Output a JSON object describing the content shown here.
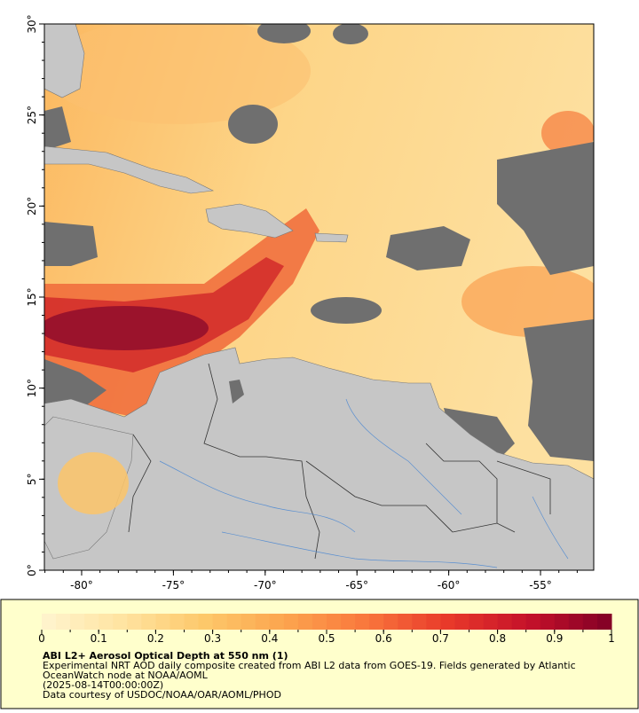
{
  "map": {
    "xlim": [
      -82.03,
      -52.1
    ],
    "ylim": [
      0,
      30
    ],
    "xticks": [
      {
        "value": -80,
        "label": "-80°"
      },
      {
        "value": -75,
        "label": "-75°"
      },
      {
        "value": -70,
        "label": "-70°"
      },
      {
        "value": -65,
        "label": "-65°"
      },
      {
        "value": -60,
        "label": "-60°"
      },
      {
        "value": -55,
        "label": "-55°"
      }
    ],
    "yticks": [
      {
        "value": 0,
        "label": "0°"
      },
      {
        "value": 5,
        "label": "5°"
      },
      {
        "value": 10,
        "label": "10°"
      },
      {
        "value": 15,
        "label": "15°"
      },
      {
        "value": 20,
        "label": "20°"
      },
      {
        "value": 25,
        "label": "25°"
      },
      {
        "value": 30,
        "label": "30°"
      }
    ]
  },
  "colorbar": {
    "range": [
      0,
      1
    ],
    "ticks": [
      0,
      0.1,
      0.2,
      0.3,
      0.4,
      0.5,
      0.6,
      0.7,
      0.8,
      0.9,
      1
    ],
    "colors": [
      "#fff4cf",
      "#ffe3a0",
      "#fdc86a",
      "#fca44e",
      "#f9763c",
      "#e8382a",
      "#c4112a",
      "#800026"
    ]
  },
  "caption": {
    "title": "ABI L2+ Aerosol Optical Depth at 550 nm (1)",
    "lines": [
      "Experimental NRT AOD daily composite created from ABI L2 data from GOES-19. Fields generated by Atlantic",
      "OceanWatch node at NOAA/AOML",
      "(2025-08-14T00:00:00Z)",
      "Data courtesy of USDOC/NOAA/OAR/AOML/PHOD"
    ]
  }
}
